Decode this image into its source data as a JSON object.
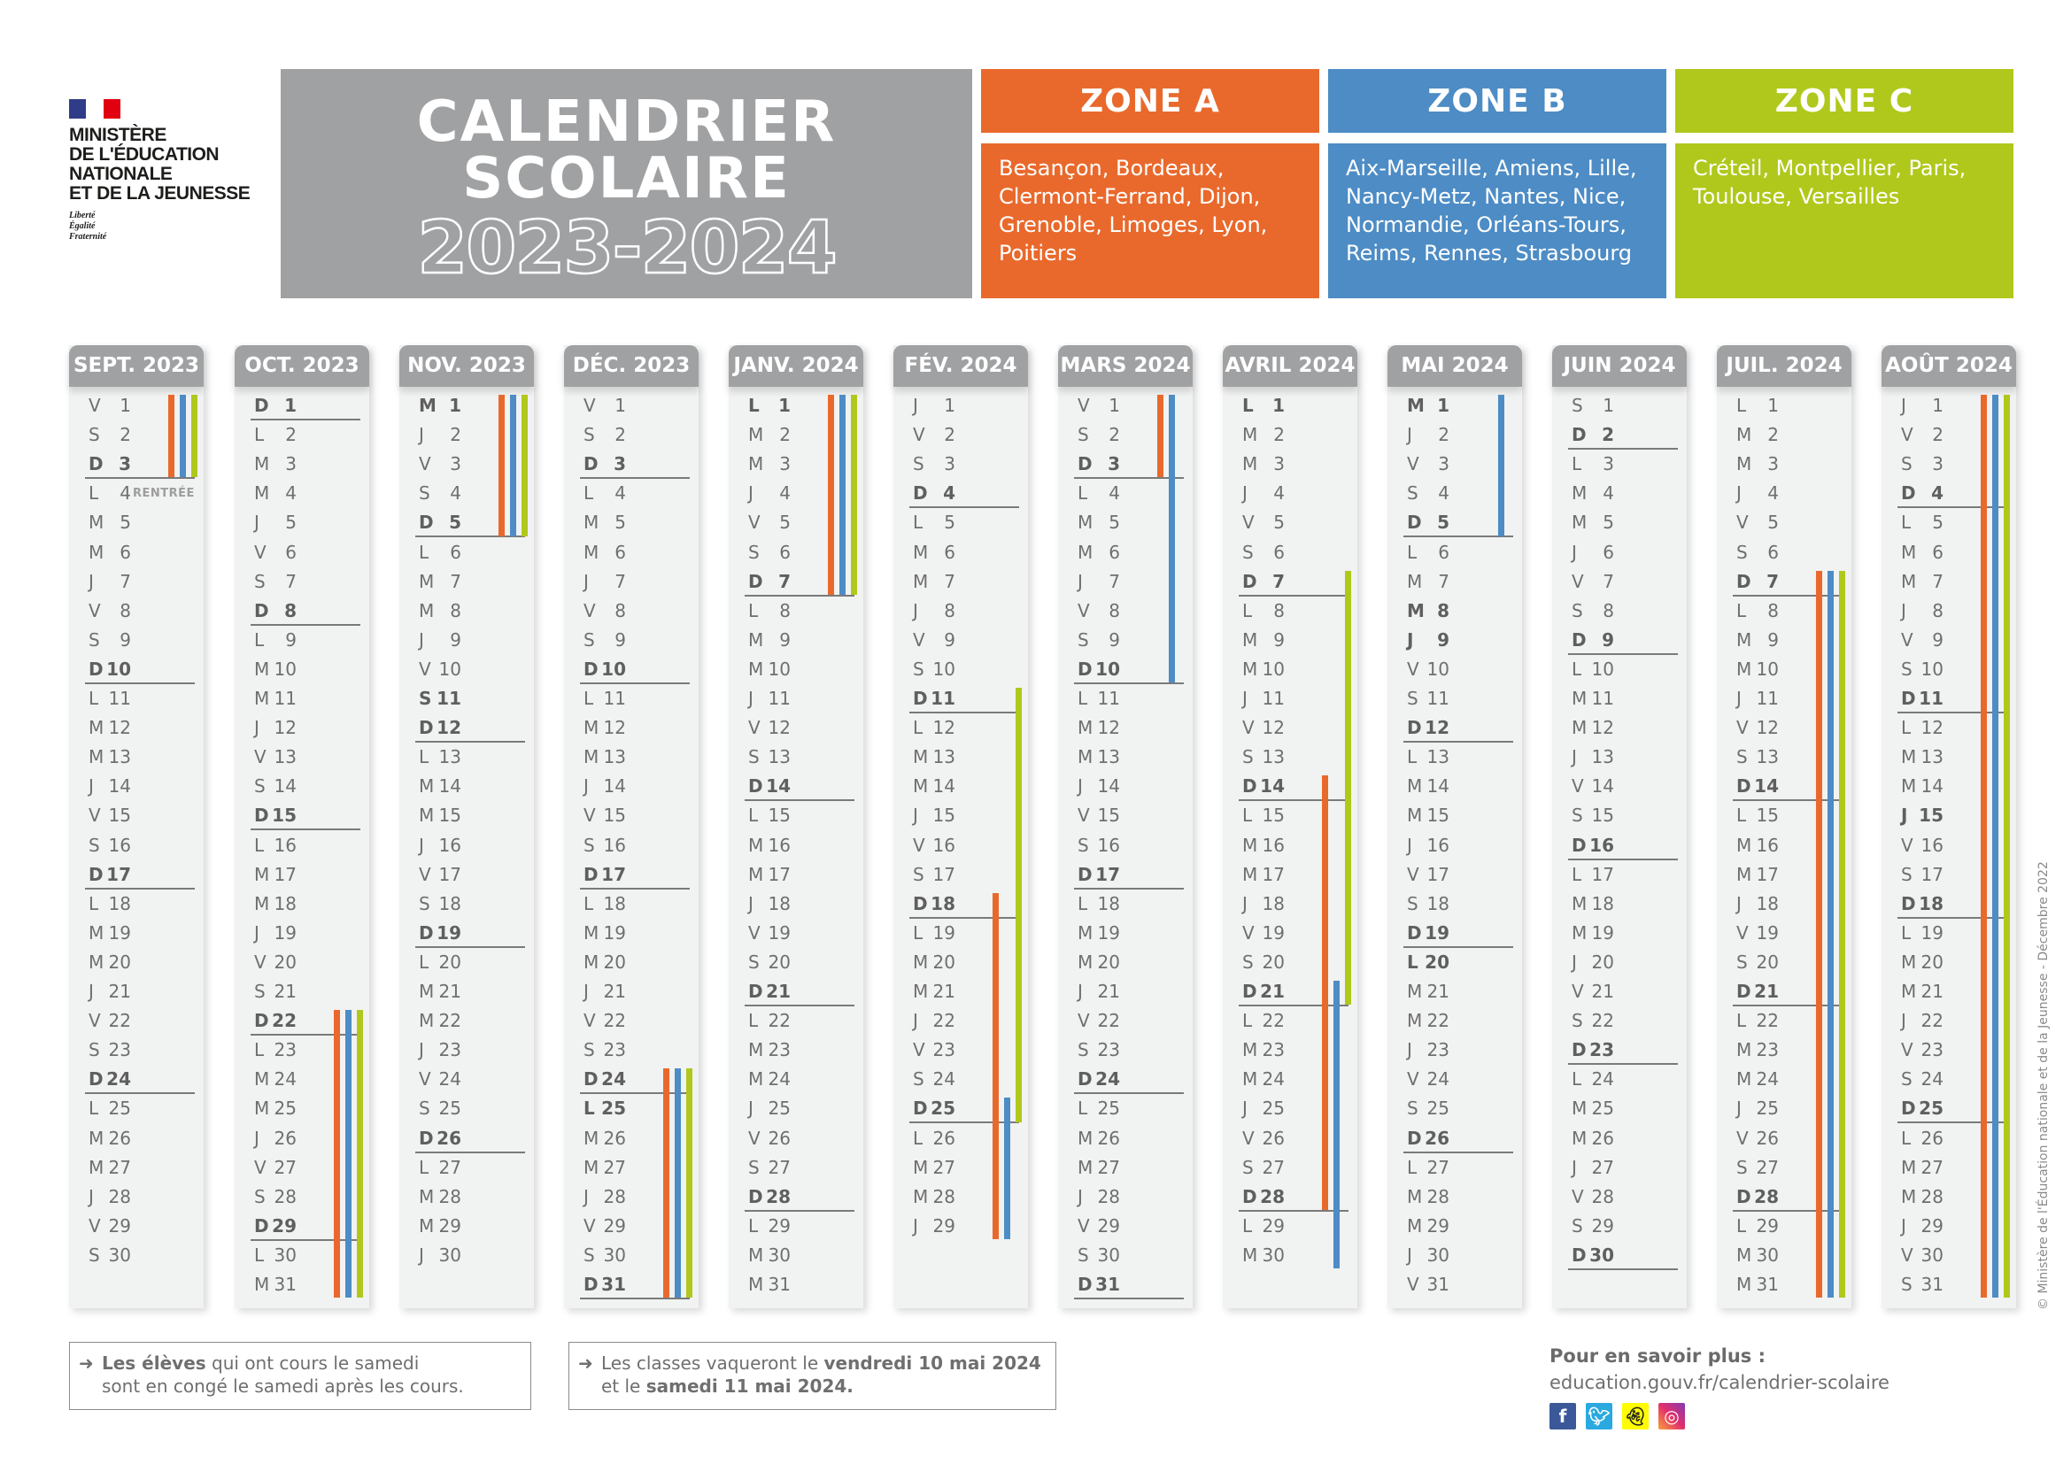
{
  "logo": {
    "lines": [
      "MINISTÈRE",
      "DE L'ÉDUCATION",
      "NATIONALE",
      "ET DE LA JEUNESSE"
    ],
    "motto": [
      "Liberté",
      "Égalité",
      "Fraternité"
    ],
    "flag_colors": [
      "#313c88",
      "#ffffff",
      "#e1000f"
    ]
  },
  "title": {
    "line1": "CALENDRIER",
    "line2": "SCOLAIRE",
    "years": "2023-2024"
  },
  "colors": {
    "A": "#e9692c",
    "B": "#4d8cc5",
    "C": "#b0c81c",
    "header_gray": "#a0a1a3",
    "column_bg": "#f1f2f2"
  },
  "zones": [
    {
      "id": "A",
      "label": "ZONE A",
      "cities": "Besançon, Bordeaux, Clermont-Ferrand, Dijon, Grenoble, Limoges, Lyon, Poitiers"
    },
    {
      "id": "B",
      "label": "ZONE B",
      "cities": "Aix-Marseille, Amiens, Lille, Nancy-Metz, Nantes, Nice, Normandie, Orléans-Tours, Reims, Rennes, Strasbourg"
    },
    {
      "id": "C",
      "label": "ZONE C",
      "cities": "Créteil, Montpellier, Paris, Toulouse, Versailles"
    }
  ],
  "months": [
    {
      "label": "SEPT. 2023",
      "days": [
        "V 1",
        "S 2",
        "D 3",
        "L 4",
        "M 5",
        "M 6",
        "J 7",
        "V 8",
        "S 9",
        "D 10",
        "L 11",
        "M 12",
        "M 13",
        "J 14",
        "V 15",
        "S 16",
        "D 17",
        "L 18",
        "M 19",
        "M 20",
        "J 21",
        "V 22",
        "S 23",
        "D 24",
        "L 25",
        "M 26",
        "M 27",
        "J 28",
        "V 29",
        "S 30"
      ],
      "holidays": [],
      "tags": {
        "4": "RENTRÉE"
      },
      "vacations": [
        {
          "zone": "A",
          "from": 1,
          "to": 3
        },
        {
          "zone": "B",
          "from": 1,
          "to": 3
        },
        {
          "zone": "C",
          "from": 1,
          "to": 3
        }
      ]
    },
    {
      "label": "OCT. 2023",
      "days": [
        "D 1",
        "L 2",
        "M 3",
        "M 4",
        "J 5",
        "V 6",
        "S 7",
        "D 8",
        "L 9",
        "M 10",
        "M 11",
        "J 12",
        "V 13",
        "S 14",
        "D 15",
        "L 16",
        "M 17",
        "M 18",
        "J 19",
        "V 20",
        "S 21",
        "D 22",
        "L 23",
        "M 24",
        "M 25",
        "J 26",
        "V 27",
        "S 28",
        "D 29",
        "L 30",
        "M 31"
      ],
      "holidays": [],
      "vacations": [
        {
          "zone": "A",
          "from": 22,
          "to": 31
        },
        {
          "zone": "B",
          "from": 22,
          "to": 31
        },
        {
          "zone": "C",
          "from": 22,
          "to": 31
        }
      ]
    },
    {
      "label": "NOV. 2023",
      "days": [
        "M 1",
        "J 2",
        "V 3",
        "S 4",
        "D 5",
        "L 6",
        "M 7",
        "M 8",
        "J 9",
        "V 10",
        "S 11",
        "D 12",
        "L 13",
        "M 14",
        "M 15",
        "J 16",
        "V 17",
        "S 18",
        "D 19",
        "L 20",
        "M 21",
        "M 22",
        "J 23",
        "V 24",
        "S 25",
        "D 26",
        "L 27",
        "M 28",
        "M 29",
        "J 30"
      ],
      "holidays": [
        1,
        11
      ],
      "vacations": [
        {
          "zone": "A",
          "from": 1,
          "to": 5
        },
        {
          "zone": "B",
          "from": 1,
          "to": 5
        },
        {
          "zone": "C",
          "from": 1,
          "to": 5
        }
      ]
    },
    {
      "label": "DÉC. 2023",
      "days": [
        "V 1",
        "S 2",
        "D 3",
        "L 4",
        "M 5",
        "M 6",
        "J 7",
        "V 8",
        "S 9",
        "D 10",
        "L 11",
        "M 12",
        "M 13",
        "J 14",
        "V 15",
        "S 16",
        "D 17",
        "L 18",
        "M 19",
        "M 20",
        "J 21",
        "V 22",
        "S 23",
        "D 24",
        "L 25",
        "M 26",
        "M 27",
        "J 28",
        "V 29",
        "S 30",
        "D 31"
      ],
      "holidays": [
        25
      ],
      "vacations": [
        {
          "zone": "A",
          "from": 24,
          "to": 31
        },
        {
          "zone": "B",
          "from": 24,
          "to": 31
        },
        {
          "zone": "C",
          "from": 24,
          "to": 31
        }
      ]
    },
    {
      "label": "JANV. 2024",
      "days": [
        "L 1",
        "M 2",
        "M 3",
        "J 4",
        "V 5",
        "S 6",
        "D 7",
        "L 8",
        "M 9",
        "M 10",
        "J 11",
        "V 12",
        "S 13",
        "D 14",
        "L 15",
        "M 16",
        "M 17",
        "J 18",
        "V 19",
        "S 20",
        "D 21",
        "L 22",
        "M 23",
        "M 24",
        "J 25",
        "V 26",
        "S 27",
        "D 28",
        "L 29",
        "M 30",
        "M 31"
      ],
      "holidays": [
        1
      ],
      "vacations": [
        {
          "zone": "A",
          "from": 1,
          "to": 7
        },
        {
          "zone": "B",
          "from": 1,
          "to": 7
        },
        {
          "zone": "C",
          "from": 1,
          "to": 7
        }
      ]
    },
    {
      "label": "FÉV. 2024",
      "days": [
        "J 1",
        "V 2",
        "S 3",
        "D 4",
        "L 5",
        "M 6",
        "M 7",
        "J 8",
        "V 9",
        "S 10",
        "D 11",
        "L 12",
        "M 13",
        "M 14",
        "J 15",
        "V 16",
        "S 17",
        "D 18",
        "L 19",
        "M 20",
        "M 21",
        "J 22",
        "V 23",
        "S 24",
        "D 25",
        "L 26",
        "M 27",
        "M 28",
        "J 29"
      ],
      "holidays": [],
      "vacations": [
        {
          "zone": "A",
          "from": 18,
          "to": 29
        },
        {
          "zone": "B",
          "from": 25,
          "to": 29
        },
        {
          "zone": "C",
          "from": 11,
          "to": 25
        }
      ]
    },
    {
      "label": "MARS 2024",
      "days": [
        "V 1",
        "S 2",
        "D 3",
        "L 4",
        "M 5",
        "M 6",
        "J 7",
        "V 8",
        "S 9",
        "D 10",
        "L 11",
        "M 12",
        "M 13",
        "J 14",
        "V 15",
        "S 16",
        "D 17",
        "L 18",
        "M 19",
        "M 20",
        "J 21",
        "V 22",
        "S 23",
        "D 24",
        "L 25",
        "M 26",
        "M 27",
        "J 28",
        "V 29",
        "S 30",
        "D 31"
      ],
      "holidays": [],
      "vacations": [
        {
          "zone": "A",
          "from": 1,
          "to": 3
        },
        {
          "zone": "B",
          "from": 1,
          "to": 10
        }
      ]
    },
    {
      "label": "AVRIL 2024",
      "days": [
        "L 1",
        "M 2",
        "M 3",
        "J 4",
        "V 5",
        "S 6",
        "D 7",
        "L 8",
        "M 9",
        "M 10",
        "J 11",
        "V 12",
        "S 13",
        "D 14",
        "L 15",
        "M 16",
        "M 17",
        "J 18",
        "V 19",
        "S 20",
        "D 21",
        "L 22",
        "M 23",
        "M 24",
        "J 25",
        "V 26",
        "S 27",
        "D 28",
        "L 29",
        "M 30"
      ],
      "holidays": [
        1
      ],
      "vacations": [
        {
          "zone": "A",
          "from": 14,
          "to": 28
        },
        {
          "zone": "B",
          "from": 21,
          "to": 30
        },
        {
          "zone": "C",
          "from": 7,
          "to": 21
        }
      ]
    },
    {
      "label": "MAI 2024",
      "days": [
        "M 1",
        "J 2",
        "V 3",
        "S 4",
        "D 5",
        "L 6",
        "M 7",
        "M 8",
        "J 9",
        "V 10",
        "S 11",
        "D 12",
        "L 13",
        "M 14",
        "M 15",
        "J 16",
        "V 17",
        "S 18",
        "D 19",
        "L 20",
        "M 21",
        "M 22",
        "J 23",
        "V 24",
        "S 25",
        "D 26",
        "L 27",
        "M 28",
        "M 29",
        "J 30",
        "V 31"
      ],
      "holidays": [
        1,
        8,
        9,
        20
      ],
      "vacations": [
        {
          "zone": "B",
          "from": 1,
          "to": 5
        }
      ]
    },
    {
      "label": "JUIN 2024",
      "days": [
        "S 1",
        "D 2",
        "L 3",
        "M 4",
        "M 5",
        "J 6",
        "V 7",
        "S 8",
        "D 9",
        "L 10",
        "M 11",
        "M 12",
        "J 13",
        "V 14",
        "S 15",
        "D 16",
        "L 17",
        "M 18",
        "M 19",
        "J 20",
        "V 21",
        "S 22",
        "D 23",
        "L 24",
        "M 25",
        "M 26",
        "J 27",
        "V 28",
        "S 29",
        "D 30"
      ],
      "holidays": [],
      "vacations": []
    },
    {
      "label": "JUIL. 2024",
      "days": [
        "L 1",
        "M 2",
        "M 3",
        "J 4",
        "V 5",
        "S 6",
        "D 7",
        "L 8",
        "M 9",
        "M 10",
        "J 11",
        "V 12",
        "S 13",
        "D 14",
        "L 15",
        "M 16",
        "M 17",
        "J 18",
        "V 19",
        "S 20",
        "D 21",
        "L 22",
        "M 23",
        "M 24",
        "J 25",
        "V 26",
        "S 27",
        "D 28",
        "L 29",
        "M 30",
        "M 31"
      ],
      "holidays": [],
      "vacations": [
        {
          "zone": "A",
          "from": 7,
          "to": 31
        },
        {
          "zone": "B",
          "from": 7,
          "to": 31
        },
        {
          "zone": "C",
          "from": 7,
          "to": 31
        }
      ]
    },
    {
      "label": "AOÛT 2024",
      "days": [
        "J 1",
        "V 2",
        "S 3",
        "D 4",
        "L 5",
        "M 6",
        "M 7",
        "J 8",
        "V 9",
        "S 10",
        "D 11",
        "L 12",
        "M 13",
        "M 14",
        "J 15",
        "V 16",
        "S 17",
        "D 18",
        "L 19",
        "M 20",
        "M 21",
        "J 22",
        "V 23",
        "S 24",
        "D 25",
        "L 26",
        "M 27",
        "M 28",
        "J 29",
        "V 30",
        "S 31"
      ],
      "holidays": [
        15
      ],
      "vacations": [
        {
          "zone": "A",
          "from": 1,
          "to": 31
        },
        {
          "zone": "B",
          "from": 1,
          "to": 31
        },
        {
          "zone": "C",
          "from": 1,
          "to": 31
        }
      ]
    }
  ],
  "notes": [
    {
      "bold": "Les élèves",
      "text1": " qui ont cours le samedi",
      "text2": "sont en congé le samedi après les cours."
    },
    {
      "text1": "Les classes vaqueront le ",
      "bold": "vendredi 10 mai 2024",
      "text2": "et le ",
      "bold2": "samedi 11 mai 2024."
    }
  ],
  "more": {
    "label": "Pour en savoir plus :",
    "link": "education.gouv.fr/calendrier-scolaire"
  },
  "social": [
    "facebook-icon",
    "twitter-icon",
    "snapchat-icon",
    "instagram-icon"
  ],
  "copyright": "© Ministère de l'Éducation nationale et de la Jeunesse - Décembre 2022"
}
